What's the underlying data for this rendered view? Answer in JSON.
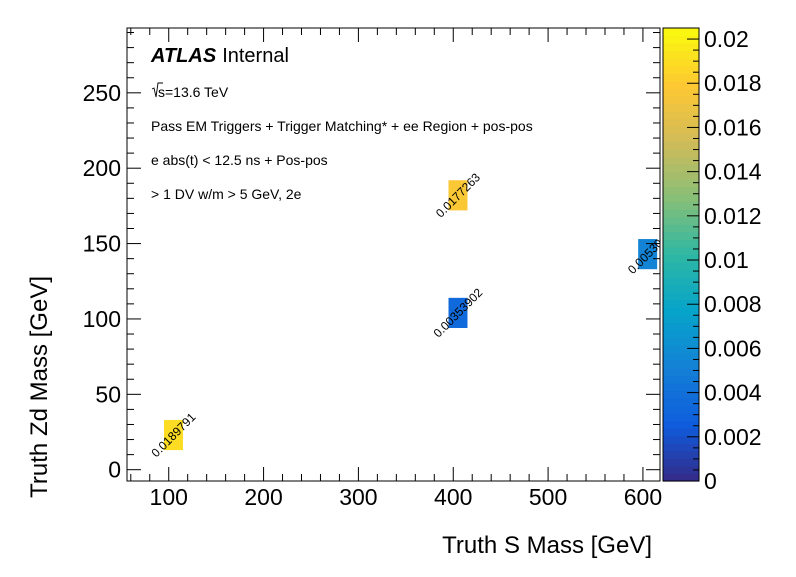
{
  "chart_data": {
    "type": "heatmap",
    "xlabel": "Truth S Mass [GeV]",
    "ylabel": "Truth Zd Mass [GeV]",
    "xlim": [
      56,
      618
    ],
    "ylim": [
      -7.5,
      293
    ],
    "xticks": [
      100,
      200,
      300,
      400,
      500,
      600
    ],
    "yticks": [
      0,
      50,
      100,
      150,
      200,
      250
    ],
    "bin_width": {
      "x": 20,
      "y": 20
    },
    "cells": [
      {
        "x": 105,
        "y": 23,
        "value": 0.0189791,
        "label": "0.0189791"
      },
      {
        "x": 405,
        "y": 182,
        "value": 0.0177263,
        "label": "0.0177263"
      },
      {
        "x": 405,
        "y": 104,
        "value": 0.00353902,
        "label": "0.00353902"
      },
      {
        "x": 605,
        "y": 143,
        "value": 0.005301,
        "label": "0.005301"
      }
    ],
    "colorbar": {
      "range": [
        0,
        0.0205
      ],
      "ticks": [
        "0",
        "0.002",
        "0.004",
        "0.006",
        "0.008",
        "0.01",
        "0.012",
        "0.014",
        "0.016",
        "0.018",
        "0.02"
      ],
      "palette": "kBird"
    },
    "annotations": {
      "atlas": "ATLAS",
      "internal": "Internal",
      "sqrt_s": "s=13.6 TeV",
      "line1": "Pass EM Triggers + Trigger Matching* + ee Region + pos-pos",
      "line2": "e abs(t) < 12.5 ns + Pos-pos",
      "line3": "> 1 DV w/m > 5 GeV, 2e"
    },
    "grid": false,
    "legend": "none"
  }
}
